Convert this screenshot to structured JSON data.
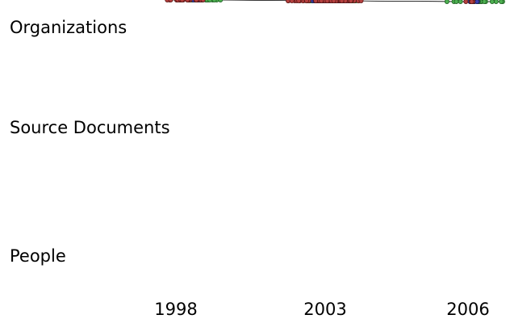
{
  "rows": [
    {
      "id": "organizations",
      "label": "Organizations",
      "color": "#4caf50",
      "stroke": "#1e5e22"
    },
    {
      "id": "source_documents",
      "label": "Source Documents",
      "color": "#3a3fae",
      "stroke": "#1a1d5c"
    },
    {
      "id": "people",
      "label": "People",
      "color": "#b5403f",
      "stroke": "#5a1716"
    }
  ],
  "years": [
    {
      "id": "y1998",
      "label": "1998"
    },
    {
      "id": "y2003",
      "label": "2003"
    },
    {
      "id": "y2006",
      "label": "2006"
    }
  ],
  "edge_color": "#333333"
}
